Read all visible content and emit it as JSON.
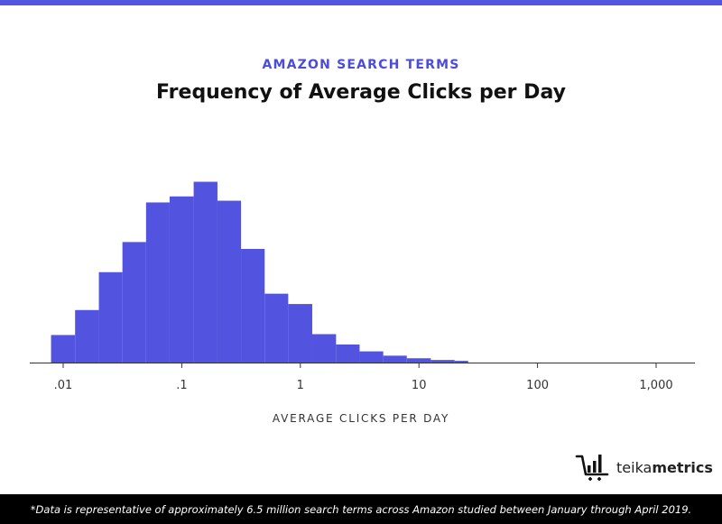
{
  "header": {
    "subtitle": "AMAZON SEARCH TERMS",
    "title": "Frequency of Average Clicks per Day"
  },
  "brand": {
    "name_light": "teika",
    "name_bold": "metrics",
    "icon": "cart-bars-logo-icon"
  },
  "footer": {
    "note": "*Data is representative of approximately 6.5 million search terms across Amazon studied between January through April 2019."
  },
  "colors": {
    "accent": "#5254E0",
    "subtitle": "#4B4DD8",
    "title": "#111111",
    "axis": "#333333",
    "footer_bg": "#000000"
  },
  "chart_data": {
    "type": "bar",
    "title": "Frequency of Average Clicks per Day",
    "subtitle": "AMAZON SEARCH TERMS",
    "xlabel": "AVERAGE CLICKS PER DAY",
    "ylabel": "",
    "x_scale": "log",
    "xlim": [
      0.007,
      3000
    ],
    "ylim": [
      0,
      220
    ],
    "grid": false,
    "y_axis_shown": false,
    "x_ticks": [
      {
        "value": 0.01,
        "label": ".01"
      },
      {
        "value": 0.1,
        "label": ".1"
      },
      {
        "value": 1,
        "label": "1"
      },
      {
        "value": 10,
        "label": "10"
      },
      {
        "value": 100,
        "label": "100"
      },
      {
        "value": 1000,
        "label": "1,000"
      }
    ],
    "bins": [
      {
        "x0": 0.0079,
        "x1": 0.0126,
        "value": 32
      },
      {
        "x0": 0.0126,
        "x1": 0.02,
        "value": 61
      },
      {
        "x0": 0.02,
        "x1": 0.0316,
        "value": 105
      },
      {
        "x0": 0.0316,
        "x1": 0.05,
        "value": 140
      },
      {
        "x0": 0.05,
        "x1": 0.079,
        "value": 186
      },
      {
        "x0": 0.079,
        "x1": 0.126,
        "value": 193
      },
      {
        "x0": 0.126,
        "x1": 0.2,
        "value": 210
      },
      {
        "x0": 0.2,
        "x1": 0.316,
        "value": 188
      },
      {
        "x0": 0.316,
        "x1": 0.5,
        "value": 132
      },
      {
        "x0": 0.5,
        "x1": 0.79,
        "value": 80
      },
      {
        "x0": 0.79,
        "x1": 1.26,
        "value": 68
      },
      {
        "x0": 1.26,
        "x1": 2.0,
        "value": 33
      },
      {
        "x0": 2.0,
        "x1": 3.16,
        "value": 21
      },
      {
        "x0": 3.16,
        "x1": 5.0,
        "value": 13
      },
      {
        "x0": 5.0,
        "x1": 7.9,
        "value": 8
      },
      {
        "x0": 7.9,
        "x1": 12.6,
        "value": 5
      },
      {
        "x0": 12.6,
        "x1": 20.0,
        "value": 3
      },
      {
        "x0": 20.0,
        "x1": 26.0,
        "value": 2
      }
    ]
  }
}
